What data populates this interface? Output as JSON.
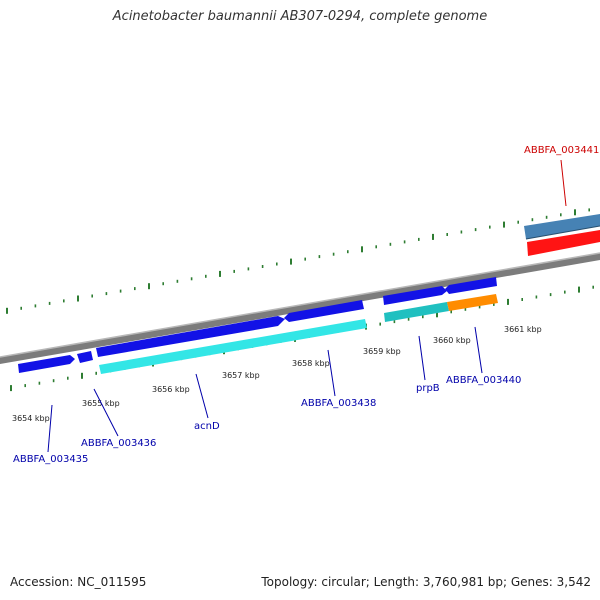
{
  "title": "Acinetobacter baumannii AB307-0294, complete genome",
  "footer": {
    "accession": "Accession: NC_011595",
    "summary": "Topology: circular; Length: 3,760,981 bp; Genes: 3,542"
  },
  "colors": {
    "backbone": "#8a8a8a",
    "ticks": "#2e7d32",
    "cds_forward": "#1212e6",
    "cds_reverse": "#33e6e6",
    "cds_reverse_alt": "#20c0c0",
    "cds_orange": "#ff8c00",
    "gene_red": "#ff1414",
    "gene_steel": "#4682b4",
    "label_blue": "#0000aa",
    "label_red": "#cc0000"
  },
  "ticks": {
    "labels": [
      "3654 kbp",
      "3655 kbp",
      "3656 kbp",
      "3657 kbp",
      "3658 kbp",
      "3659 kbp",
      "3660 kbp",
      "3661 kbp"
    ]
  },
  "genes": [
    {
      "label": "ABBFA_003435",
      "color": "label_blue"
    },
    {
      "label": "ABBFA_003436",
      "color": "label_blue"
    },
    {
      "label": "acnD",
      "color": "label_blue"
    },
    {
      "label": "ABBFA_003438",
      "color": "label_blue"
    },
    {
      "label": "prpB",
      "color": "label_blue"
    },
    {
      "label": "ABBFA_003440",
      "color": "label_blue"
    },
    {
      "label": "ABBFA_003441",
      "color": "label_red"
    }
  ]
}
